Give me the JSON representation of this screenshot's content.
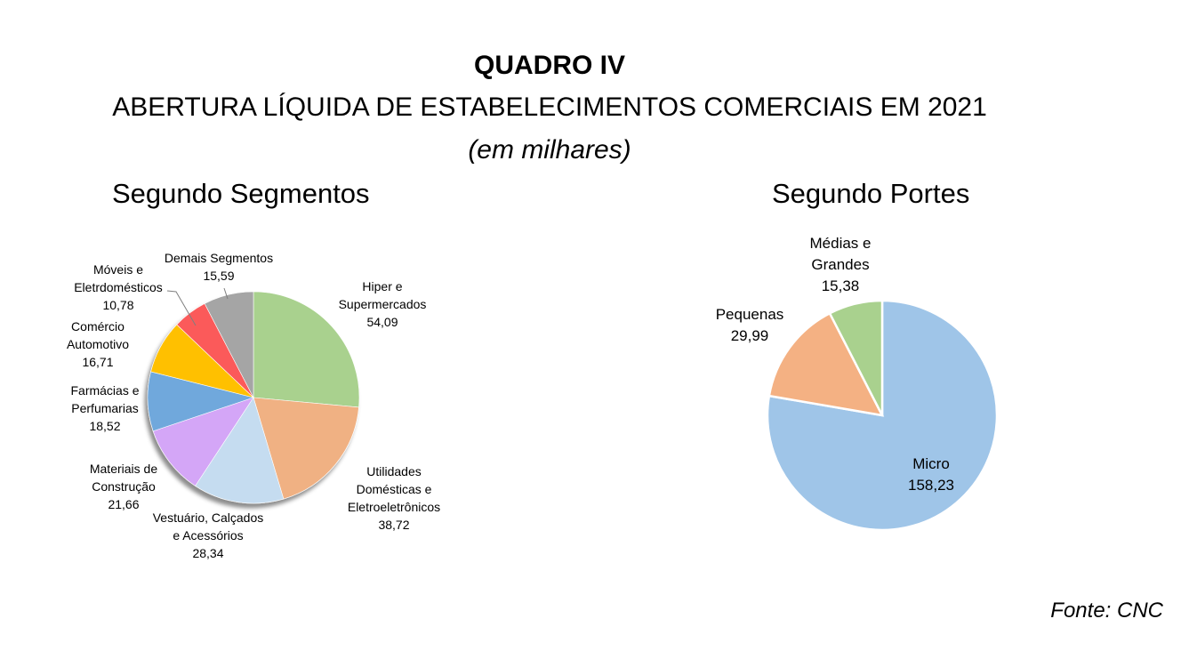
{
  "header": {
    "title": "QUADRO IV",
    "subtitle": "ABERTURA LÍQUIDA DE ESTABELECIMENTOS COMERCIAIS EM 2021",
    "unit": "(em milhares)"
  },
  "source": "Fonte: CNC",
  "chart_data": [
    {
      "type": "pie",
      "title": "Segundo Segmentos",
      "slices": [
        {
          "lines": [
            "Hiper e",
            "Supermercados"
          ],
          "value": 54.09,
          "value_label": "54,09",
          "color": "#a9d18e"
        },
        {
          "lines": [
            "Utilidades",
            "Domésticas e",
            "Eletroeletrônicos"
          ],
          "value": 38.72,
          "value_label": "38,72",
          "color": "#f0b183"
        },
        {
          "lines": [
            "Vestuário, Calçados",
            "e Acessórios"
          ],
          "value": 28.34,
          "value_label": "28,34",
          "color": "#c5dcf0"
        },
        {
          "lines": [
            "Materiais de",
            "Construção"
          ],
          "value": 21.66,
          "value_label": "21,66",
          "color": "#d4a6f7"
        },
        {
          "lines": [
            "Farmácias e",
            "Perfumarias"
          ],
          "value": 18.52,
          "value_label": "18,52",
          "color": "#6fa8dc"
        },
        {
          "lines": [
            "Comércio",
            "Automotivo"
          ],
          "value": 16.71,
          "value_label": "16,71",
          "color": "#ffc000"
        },
        {
          "lines": [
            "Móveis e",
            "Eletrdomésticos"
          ],
          "value": 10.78,
          "value_label": "10,78",
          "color": "#fb5a5a"
        },
        {
          "lines": [
            "Demais Segmentos"
          ],
          "value": 15.59,
          "value_label": "15,59",
          "color": "#a5a5a5"
        }
      ]
    },
    {
      "type": "pie",
      "title": "Segundo Portes",
      "slices": [
        {
          "lines": [
            "Micro"
          ],
          "value": 158.23,
          "value_label": "158,23",
          "color": "#9fc5e8"
        },
        {
          "lines": [
            "Pequenas"
          ],
          "value": 29.99,
          "value_label": "29,99",
          "color": "#f4b183"
        },
        {
          "lines": [
            "Médias e",
            "Grandes"
          ],
          "value": 15.38,
          "value_label": "15,38",
          "color": "#a9d18e"
        }
      ]
    }
  ]
}
